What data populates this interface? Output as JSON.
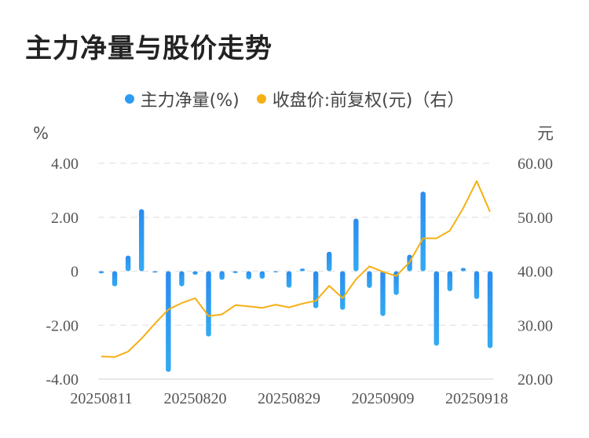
{
  "title": "主力净量与股价走势",
  "legend": [
    {
      "label": "主力净量(%)",
      "color": "#2d9cf0"
    },
    {
      "label": "收盘价:前复权(元)（右）",
      "color": "#f5b014"
    }
  ],
  "chart_data": {
    "type": "bar+line",
    "title": "主力净量与股价走势",
    "left_unit": "%",
    "right_unit": "元",
    "left_ylim": [
      -4,
      4
    ],
    "right_ylim": [
      20,
      60
    ],
    "left_ticks": [
      "4.00",
      "2.00",
      "0",
      "-2.00",
      "-4.00"
    ],
    "right_ticks": [
      "60.00",
      "50.00",
      "40.00",
      "30.00",
      "20.00"
    ],
    "x_tick_labels": [
      "20250811",
      "20250820",
      "20250829",
      "20250909",
      "20250918"
    ],
    "x": [
      "20250811",
      "20250812",
      "20250813",
      "20250814",
      "20250815",
      "20250818",
      "20250819",
      "20250820",
      "20250821",
      "20250822",
      "20250825",
      "20250826",
      "20250827",
      "20250828",
      "20250829",
      "20250901",
      "20250902",
      "20250903",
      "20250904",
      "20250905",
      "20250908",
      "20250909",
      "20250910",
      "20250911",
      "20250912",
      "20250915",
      "20250916",
      "20250917",
      "20250918",
      "20250919"
    ],
    "series": [
      {
        "name": "主力净量(%)",
        "type": "bar",
        "axis": "left",
        "color": "#2d9cf0",
        "values": [
          -0.08,
          -0.56,
          0.58,
          2.3,
          -0.05,
          -3.73,
          -0.56,
          -0.13,
          -2.42,
          -0.32,
          -0.07,
          -0.3,
          -0.28,
          -0.01,
          -0.61,
          0.1,
          -1.37,
          0.72,
          -1.43,
          1.95,
          -0.62,
          -1.66,
          -0.88,
          0.61,
          2.95,
          -2.76,
          -0.74,
          0.12,
          -1.03,
          -2.85
        ]
      },
      {
        "name": "收盘价:前复权(元)（右）",
        "type": "line",
        "axis": "right",
        "color": "#f5b014",
        "values": [
          24.2,
          24.1,
          25.1,
          27.5,
          30.3,
          32.9,
          34.1,
          35.0,
          31.7,
          32.0,
          33.7,
          33.5,
          33.2,
          33.8,
          33.3,
          34.0,
          34.5,
          37.3,
          35.0,
          38.5,
          40.9,
          39.9,
          39.1,
          41.7,
          46.1,
          46.1,
          47.5,
          51.7,
          56.7,
          51.0
        ]
      }
    ],
    "grid": true,
    "legend_position": "top-center"
  }
}
